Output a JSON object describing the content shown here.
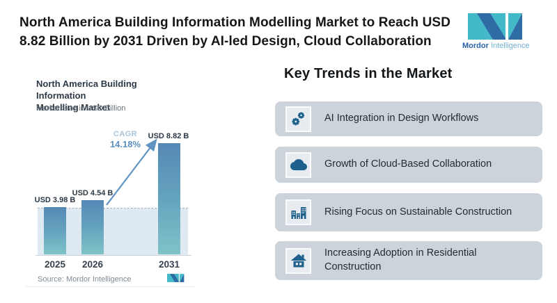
{
  "header": {
    "title_lines": [
      "North America Building Information Modelling Market to Reach USD",
      "8.82 Billion by 2031 Driven by AI-led Design, Cloud Collaboration"
    ],
    "logo": {
      "brand_bold": "Mordor",
      "brand_light": " Intelligence",
      "teal": "#44b9c9",
      "blue": "#2f6ca6"
    }
  },
  "chart_card": {
    "title_lines": [
      "North America Building Information",
      "Modelling Market"
    ],
    "subtitle": "Market Size in USD Billion",
    "cagr_label": "CAGR",
    "cagr_value": "14.18%",
    "source": "Source: Mordor Intelligence"
  },
  "chart_data": {
    "type": "bar",
    "title": "North America Building Information Modelling Market",
    "subtitle": "Market Size in USD Billion",
    "categories": [
      "2025",
      "2026",
      "2031"
    ],
    "values": [
      3.98,
      4.54,
      8.82
    ],
    "labels": [
      "USD 3.98 B",
      "USD 4.54 B",
      "USD 8.82 B"
    ],
    "unit": "USD Billion",
    "cagr_percent": 14.18,
    "annotation": "CAGR 14.18% arrow from 2026 bar to 2031 bar",
    "dashed_reference_level": 3.98,
    "ylim": [
      0,
      9.5
    ],
    "grid": false,
    "bar_color_top": "#5589b6",
    "bar_color_bottom": "#7fc3c8",
    "reference_band_color": "#dfe9f2",
    "source": "Source: Mordor Intelligence"
  },
  "trends": {
    "heading": "Key Trends in the Market",
    "row_bg": "#cdd3da",
    "icon_color": "#1d618c",
    "items": [
      {
        "icon": "gears-icon",
        "label": "AI Integration in Design Workflows"
      },
      {
        "icon": "cloud-icon",
        "label": "Growth of Cloud-Based Collaboration"
      },
      {
        "icon": "buildings-icon",
        "label": "Rising Focus on Sustainable Construction"
      },
      {
        "icon": "house-icon",
        "label": "Increasing Adoption in Residential Construction"
      }
    ]
  }
}
